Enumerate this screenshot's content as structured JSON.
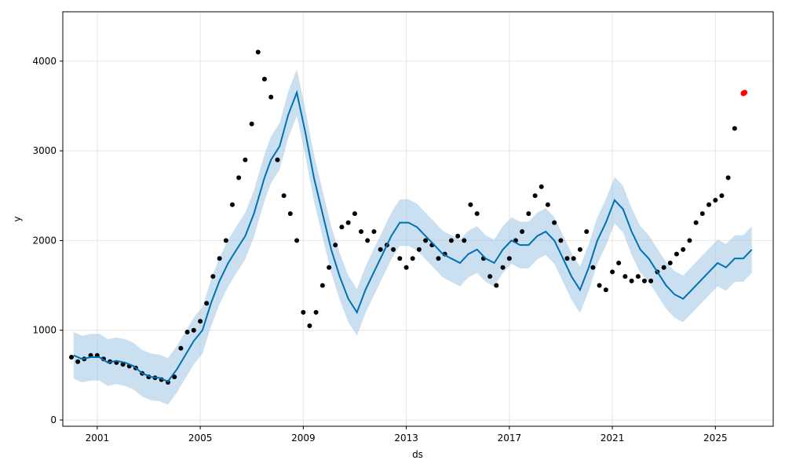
{
  "chart_data": {
    "type": "scatter",
    "title": "",
    "xlabel": "ds",
    "ylabel": "y",
    "x_ticks": [
      "2001",
      "2005",
      "2009",
      "2013",
      "2017",
      "2021",
      "2025"
    ],
    "y_ticks": [
      0,
      1000,
      2000,
      3000,
      4000
    ],
    "xlim": [
      "1999-09-01",
      "2027-04-01"
    ],
    "ylim": [
      -70,
      4550
    ],
    "grid": true,
    "legend": "none",
    "colors": {
      "observed": "#000000",
      "forecast": "#0072B2",
      "interval": "#9ec5e3",
      "future_points": "#ff0000"
    },
    "forecast_line": {
      "dates": [
        "2000-02-01",
        "2000-06-01",
        "2000-10-01",
        "2001-02-01",
        "2001-06-01",
        "2001-10-01",
        "2002-02-01",
        "2002-06-01",
        "2002-10-01",
        "2003-02-01",
        "2003-06-01",
        "2003-10-01",
        "2004-02-01",
        "2004-06-01",
        "2004-10-01",
        "2005-02-01",
        "2005-06-01",
        "2005-10-01",
        "2006-02-01",
        "2006-06-01",
        "2006-10-01",
        "2007-02-01",
        "2007-07-01",
        "2007-10-01",
        "2008-02-01",
        "2008-06-01",
        "2008-10-01",
        "2009-02-01",
        "2009-06-01",
        "2009-10-01",
        "2010-02-01",
        "2010-06-01",
        "2010-10-01",
        "2011-02-01",
        "2011-06-01",
        "2011-10-01",
        "2012-02-01",
        "2012-06-01",
        "2012-10-01",
        "2013-02-01",
        "2013-06-01",
        "2013-10-01",
        "2014-02-01",
        "2014-06-01",
        "2014-10-01",
        "2015-02-01",
        "2015-06-01",
        "2015-10-01",
        "2016-02-01",
        "2016-06-01",
        "2016-10-01",
        "2017-02-01",
        "2017-06-01",
        "2017-10-01",
        "2018-02-01",
        "2018-06-01",
        "2018-10-01",
        "2019-02-01",
        "2019-06-01",
        "2019-10-01",
        "2020-02-01",
        "2020-06-01",
        "2020-10-01",
        "2021-02-01",
        "2021-06-01",
        "2021-10-01",
        "2022-02-01",
        "2022-06-01",
        "2022-10-01",
        "2023-02-01",
        "2023-06-01",
        "2023-10-01",
        "2024-02-01",
        "2024-06-01",
        "2024-10-01",
        "2025-02-01",
        "2025-06-01",
        "2025-10-01",
        "2026-02-01",
        "2026-06-01"
      ],
      "values": [
        720,
        680,
        700,
        700,
        640,
        660,
        640,
        600,
        520,
        480,
        470,
        430,
        560,
        720,
        880,
        1000,
        1300,
        1550,
        1750,
        1900,
        2050,
        2300,
        2700,
        2900,
        3050,
        3400,
        3650,
        3200,
        2700,
        2300,
        1900,
        1600,
        1350,
        1200,
        1450,
        1650,
        1850,
        2050,
        2200,
        2200,
        2150,
        2050,
        1950,
        1850,
        1800,
        1750,
        1850,
        1900,
        1800,
        1750,
        1900,
        2000,
        1950,
        1950,
        2050,
        2100,
        2000,
        1800,
        1600,
        1450,
        1700,
        2000,
        2200,
        2450,
        2350,
        2100,
        1900,
        1800,
        1650,
        1500,
        1400,
        1350,
        1450,
        1550,
        1650,
        1750,
        1700,
        1800,
        1800,
        1900
      ]
    },
    "observed_points": {
      "dates": [
        "2000-01-01",
        "2000-04-01",
        "2000-07-01",
        "2000-10-01",
        "2001-01-01",
        "2001-04-01",
        "2001-07-01",
        "2001-10-01",
        "2002-01-01",
        "2002-04-01",
        "2002-07-01",
        "2002-10-01",
        "2003-01-01",
        "2003-04-01",
        "2003-07-01",
        "2003-10-01",
        "2004-01-01",
        "2004-04-01",
        "2004-07-01",
        "2004-10-01",
        "2005-01-01",
        "2005-04-01",
        "2005-07-01",
        "2005-10-01",
        "2006-01-01",
        "2006-04-01",
        "2006-07-01",
        "2006-10-01",
        "2007-01-01",
        "2007-04-01",
        "2007-07-01",
        "2007-10-01",
        "2008-01-01",
        "2008-04-01",
        "2008-07-01",
        "2008-10-01",
        "2009-01-01",
        "2009-04-01",
        "2009-07-01",
        "2009-10-01",
        "2010-01-01",
        "2010-04-01",
        "2010-07-01",
        "2010-10-01",
        "2011-01-01",
        "2011-04-01",
        "2011-07-01",
        "2011-10-01",
        "2012-01-01",
        "2012-04-01",
        "2012-07-01",
        "2012-10-01",
        "2013-01-01",
        "2013-04-01",
        "2013-07-01",
        "2013-10-01",
        "2014-01-01",
        "2014-04-01",
        "2014-07-01",
        "2014-10-01",
        "2015-01-01",
        "2015-04-01",
        "2015-07-01",
        "2015-10-01",
        "2016-01-01",
        "2016-04-01",
        "2016-07-01",
        "2016-10-01",
        "2017-01-01",
        "2017-04-01",
        "2017-07-01",
        "2017-10-01",
        "2018-01-01",
        "2018-04-01",
        "2018-07-01",
        "2018-10-01",
        "2019-01-01",
        "2019-04-01",
        "2019-07-01",
        "2019-10-01",
        "2020-01-01",
        "2020-04-01",
        "2020-07-01",
        "2020-10-01",
        "2021-01-01",
        "2021-04-01",
        "2021-07-01",
        "2021-10-01",
        "2022-01-01",
        "2022-04-01",
        "2022-07-01",
        "2022-10-01",
        "2023-01-01",
        "2023-04-01",
        "2023-07-01",
        "2023-10-01",
        "2024-01-01",
        "2024-04-01",
        "2024-07-01",
        "2024-10-01",
        "2025-01-01",
        "2025-04-01",
        "2025-07-01",
        "2025-10-01"
      ],
      "values": [
        700,
        650,
        680,
        720,
        720,
        680,
        650,
        640,
        620,
        600,
        580,
        520,
        480,
        470,
        450,
        420,
        480,
        800,
        980,
        1000,
        1100,
        1300,
        1600,
        1800,
        2000,
        2400,
        2700,
        2900,
        3300,
        4100,
        3800,
        3600,
        2900,
        2500,
        2300,
        2000,
        1200,
        1050,
        1200,
        1500,
        1700,
        1950,
        2150,
        2200,
        2300,
        2100,
        2000,
        2100,
        1900,
        1950,
        1900,
        1800,
        1700,
        1800,
        1900,
        2000,
        1950,
        1800,
        1850,
        2000,
        2050,
        2000,
        2400,
        2300,
        1800,
        1600,
        1500,
        1700,
        1800,
        2000,
        2100,
        2300,
        2500,
        2600,
        2400,
        2200,
        2000,
        1800,
        1800,
        1900,
        2100,
        1700,
        1500,
        1450,
        1650,
        1750,
        1600,
        1550,
        1600,
        1550,
        1550,
        1650,
        1700,
        1750,
        1850,
        1900,
        2000,
        2200,
        2300,
        2400,
        2450,
        2500,
        2700,
        3250
      ]
    },
    "future_points": {
      "dates": [
        "2026-02-01",
        "2026-02-10",
        "2026-02-20"
      ],
      "values": [
        3640,
        3645,
        3650
      ]
    }
  }
}
